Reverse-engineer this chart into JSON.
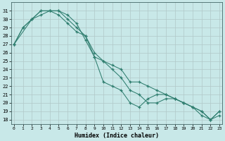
{
  "xlabel": "Humidex (Indice chaleur)",
  "x_ticks": [
    0,
    1,
    2,
    3,
    4,
    5,
    6,
    7,
    8,
    9,
    10,
    11,
    12,
    13,
    14,
    15,
    16,
    17,
    18,
    19,
    20,
    21,
    22,
    23
  ],
  "y_ticks": [
    18,
    19,
    20,
    21,
    22,
    23,
    24,
    25,
    26,
    27,
    28,
    29,
    30,
    31
  ],
  "xlim": [
    -0.3,
    23.3
  ],
  "ylim": [
    17.5,
    32.0
  ],
  "color": "#2e7d6e",
  "bg_color": "#c8e8e8",
  "grid_color": "#b0c8c8",
  "line1_x": [
    0,
    1,
    2,
    3,
    4,
    5,
    6,
    7,
    8,
    9,
    10,
    11,
    12,
    13,
    14,
    15,
    16,
    17,
    18,
    19,
    20,
    21,
    22,
    23
  ],
  "line1_y": [
    27.0,
    29.0,
    30.0,
    31.0,
    31.0,
    31.0,
    30.0,
    29.0,
    28.0,
    25.5,
    25.0,
    24.5,
    24.0,
    22.5,
    22.5,
    22.0,
    21.5,
    21.0,
    20.5,
    20.0,
    19.5,
    19.0,
    18.0,
    18.5
  ],
  "line2_x": [
    0,
    1,
    2,
    3,
    4,
    5,
    6,
    7,
    8,
    9,
    10,
    11,
    12,
    13,
    14,
    15,
    16,
    17,
    18,
    19,
    20,
    21,
    22,
    23
  ],
  "line2_y": [
    27.0,
    29.0,
    30.0,
    31.0,
    31.0,
    31.0,
    30.5,
    29.5,
    27.5,
    25.5,
    22.5,
    22.0,
    21.5,
    20.0,
    19.5,
    20.5,
    21.0,
    21.0,
    20.5,
    20.0,
    19.5,
    19.0,
    18.0,
    19.0
  ],
  "line3_x": [
    0,
    2,
    3,
    4,
    5,
    6,
    7,
    8,
    9,
    10,
    11,
    12,
    13,
    14,
    15,
    16,
    17,
    18,
    19,
    20,
    21,
    22,
    23
  ],
  "line3_y": [
    27.0,
    30.0,
    30.5,
    31.0,
    30.5,
    29.5,
    28.5,
    28.0,
    26.0,
    25.0,
    24.0,
    23.0,
    21.5,
    21.0,
    20.0,
    20.0,
    20.5,
    20.5,
    20.0,
    19.5,
    18.5,
    18.0,
    19.0
  ]
}
